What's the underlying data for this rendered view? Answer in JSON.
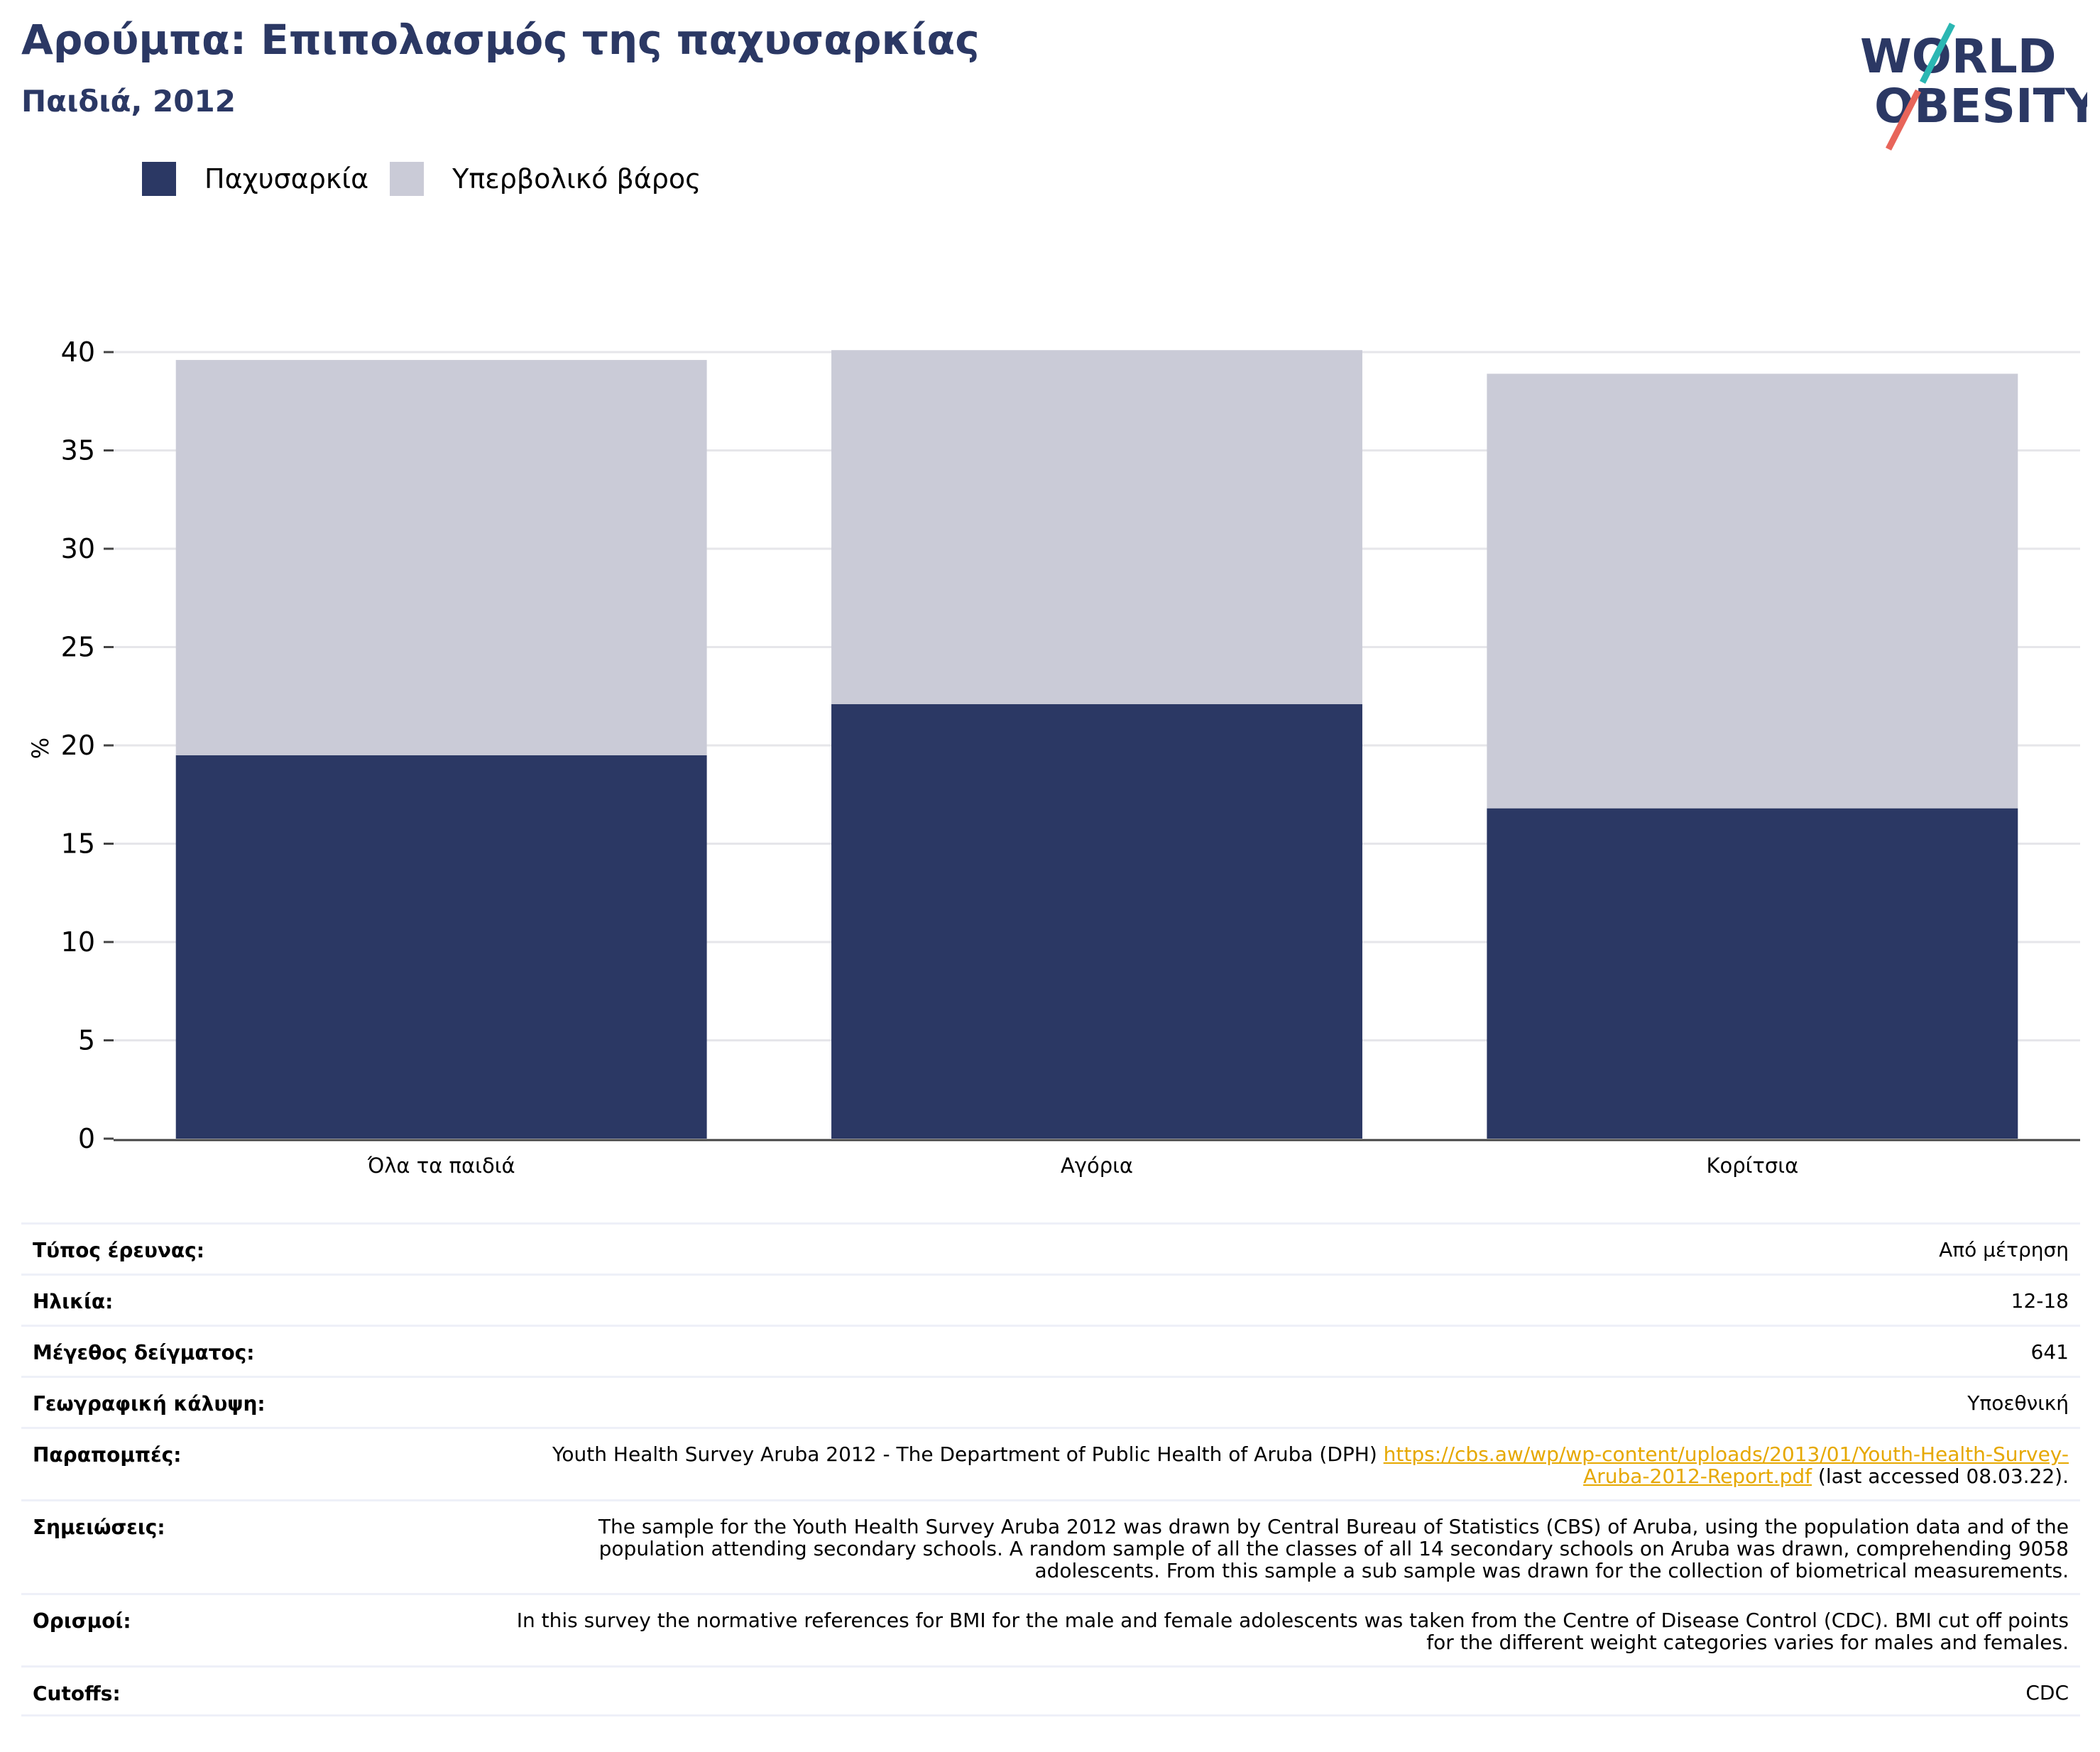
{
  "header": {
    "title": "Αρούμπα: Επιπολασμός της παχυσαρκίας",
    "subtitle": "Παιδιά, 2012"
  },
  "logo": {
    "line1": "WORLD",
    "line2": "OBESITY"
  },
  "colors": {
    "obesity": "#2b3864",
    "overweight": "#cacbd7",
    "title": "#2b3864",
    "link": "#e6a800"
  },
  "chart_data": {
    "type": "bar",
    "stacked": true,
    "categories": [
      "Όλα τα παιδιά",
      "Αγόρια",
      "Κορίτσια"
    ],
    "series": [
      {
        "name": "Παχυσαρκία",
        "color": "#2b3864",
        "values": [
          19.5,
          22.1,
          16.8
        ]
      },
      {
        "name": "Υπερβολικό βάρος",
        "color": "#cacbd7",
        "values": [
          20.1,
          18.0,
          22.1
        ]
      }
    ],
    "ylabel": "%",
    "ylim": [
      0,
      40
    ],
    "yticks": [
      0,
      5,
      10,
      15,
      20,
      25,
      30,
      35,
      40
    ],
    "grid": true,
    "legend": "top-left"
  },
  "info": [
    {
      "label": "Τύπος έρευνας:",
      "value": "Από μέτρηση"
    },
    {
      "label": "Ηλικία:",
      "value": "12-18"
    },
    {
      "label": "Μέγεθος δείγματος:",
      "value": "641"
    },
    {
      "label": "Γεωγραφική κάλυψη:",
      "value": "Υποεθνική"
    },
    {
      "label": "Παραπομπές:",
      "value": "Youth Health Survey Aruba 2012 - The Department of Public Health of Aruba (DPH) ",
      "link": "https://cbs.aw/wp/wp-content/uploads/2013/01/Youth-Health-Survey-Aruba-2012-Report.pdf",
      "suffix": " (last accessed 08.03.22)."
    },
    {
      "label": "Σημειώσεις:",
      "value": "The sample for the Youth Health Survey Aruba 2012 was drawn by Central Bureau of Statistics (CBS) of Aruba, using the population data and of the population attending secondary schools. A random sample of all the classes of all 14 secondary schools on Aruba was drawn, comprehending 9058 adolescents. From this sample a sub sample was drawn for the collection of biometrical measurements."
    },
    {
      "label": "Ορισμοί:",
      "value": "In this survey the normative references for BMI for the male and female adolescents was taken from the Centre of Disease Control (CDC). BMI cut off points for the different weight categories varies for males and females."
    },
    {
      "label": "Cutoffs:",
      "value": "CDC"
    }
  ]
}
